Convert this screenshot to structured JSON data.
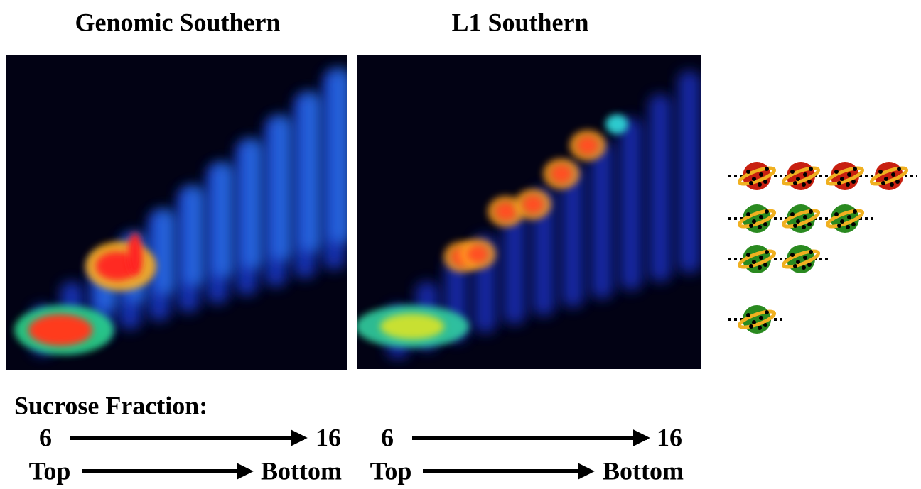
{
  "axis_label": "Sucrose Fraction:",
  "panels": [
    {
      "title": "Genomic Southern",
      "fraction_start": "6",
      "fraction_end": "16",
      "direction_start": "Top",
      "direction_end": "Bottom"
    },
    {
      "title": "L1 Southern",
      "fraction_start": "6",
      "fraction_end": "16",
      "direction_start": "Top",
      "direction_end": "Bottom"
    }
  ]
}
